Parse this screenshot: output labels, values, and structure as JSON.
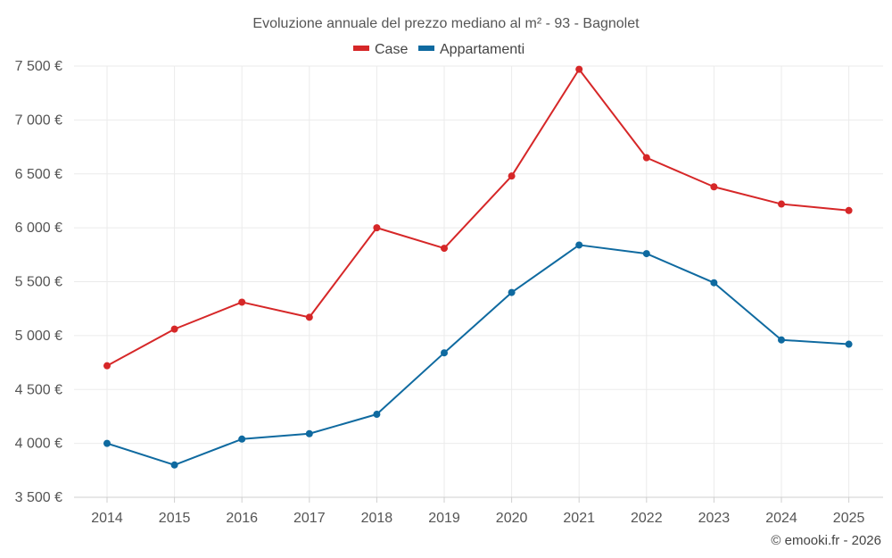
{
  "chart_data": {
    "type": "line",
    "title": "Evoluzione annuale del prezzo mediano al m² - 93 - Bagnolet",
    "categories": [
      "2014",
      "2015",
      "2016",
      "2017",
      "2018",
      "2019",
      "2020",
      "2021",
      "2022",
      "2023",
      "2024",
      "2025"
    ],
    "series": [
      {
        "name": "Case",
        "color": "#d62728",
        "values": [
          4720,
          5060,
          5310,
          5170,
          6000,
          5810,
          6480,
          7470,
          6650,
          6380,
          6220,
          6160
        ]
      },
      {
        "name": "Appartamenti",
        "color": "#0f6aa0",
        "values": [
          4000,
          3800,
          4040,
          4090,
          4270,
          4840,
          5400,
          5840,
          5760,
          5490,
          4960,
          4920
        ]
      }
    ],
    "y_ticks": [
      3500,
      4000,
      4500,
      5000,
      5500,
      6000,
      6500,
      7000,
      7500
    ],
    "y_tick_labels": [
      "3 500 €",
      "4 000 €",
      "4 500 €",
      "5 000 €",
      "5 500 €",
      "6 000 €",
      "6 500 €",
      "7 000 €",
      "7 500 €"
    ],
    "ylim": [
      3500,
      7500
    ],
    "grid": true,
    "legend_position": "top-center"
  },
  "credit": "© emooki.fr - 2026"
}
